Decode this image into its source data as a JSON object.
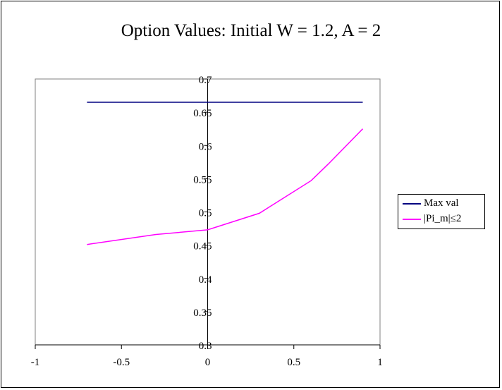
{
  "chart_data": {
    "type": "line",
    "title": "Option Values: Initial W = 1.2, A = 2",
    "xlabel": "",
    "ylabel": "",
    "xlim": [
      -1,
      1
    ],
    "ylim": [
      0.3,
      0.7
    ],
    "x_ticks": [
      "-1",
      "-0.5",
      "0",
      "0.5",
      "1"
    ],
    "y_ticks": [
      "0.3",
      "0.35",
      "0.4",
      "0.45",
      "0.5",
      "0.55",
      "0.6",
      "0.65",
      "0.7"
    ],
    "x_tick_values": [
      -1,
      -0.5,
      0,
      0.5,
      1
    ],
    "y_tick_values": [
      0.3,
      0.35,
      0.4,
      0.45,
      0.5,
      0.55,
      0.6,
      0.65,
      0.7
    ],
    "grid": false,
    "legend_position": "right",
    "series": [
      {
        "name": "Max val",
        "color": "#000080",
        "x": [
          -0.7,
          0.9
        ],
        "y": [
          0.665,
          0.665
        ]
      },
      {
        "name": "|Pi_m|≤2",
        "color": "#FF00FF",
        "x": [
          -0.7,
          -0.3,
          0,
          0.3,
          0.6,
          0.7,
          0.9
        ],
        "y": [
          0.451,
          0.466,
          0.473,
          0.498,
          0.547,
          0.572,
          0.625
        ]
      }
    ]
  }
}
